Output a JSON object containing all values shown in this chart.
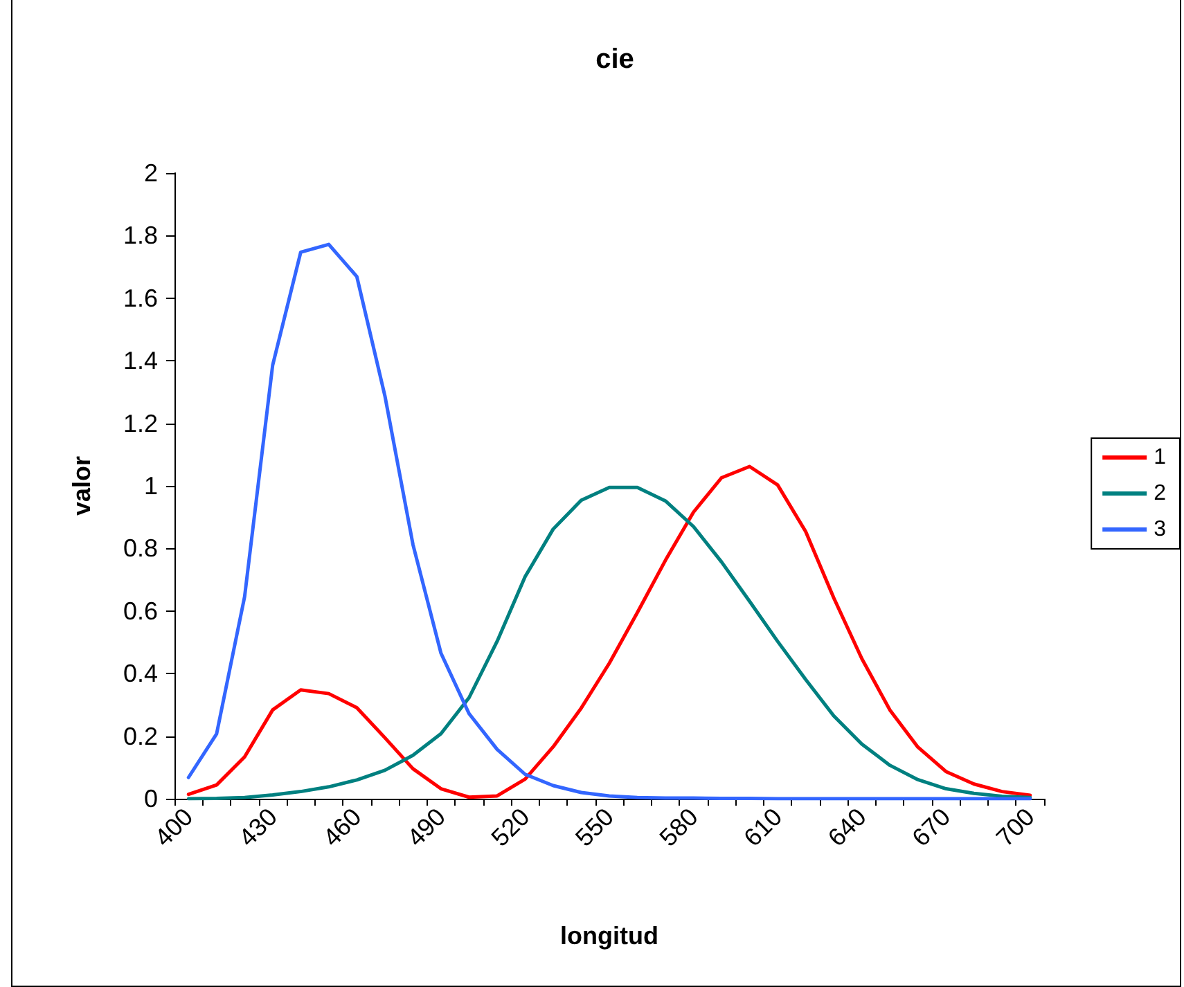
{
  "chart_data": {
    "type": "line",
    "title": "cie",
    "xlabel": "longitud",
    "ylabel": "valor",
    "categories": [
      "400",
      null,
      null,
      "430",
      null,
      null,
      "460",
      null,
      null,
      "490",
      null,
      null,
      "520",
      null,
      null,
      "550",
      null,
      null,
      "580",
      null,
      null,
      "610",
      null,
      null,
      "640",
      null,
      null,
      "670",
      null,
      null,
      "700"
    ],
    "series": [
      {
        "name": "1",
        "color": "#ff0000",
        "values": [
          0.014,
          0.044,
          0.134,
          0.284,
          0.348,
          0.336,
          0.291,
          0.195,
          0.096,
          0.032,
          0.005,
          0.009,
          0.063,
          0.166,
          0.29,
          0.433,
          0.595,
          0.762,
          0.916,
          1.026,
          1.062,
          1.003,
          0.854,
          0.642,
          0.448,
          0.284,
          0.165,
          0.087,
          0.047,
          0.023,
          0.011
        ]
      },
      {
        "name": "2",
        "color": "#008080",
        "values": [
          0,
          0.001,
          0.004,
          0.012,
          0.023,
          0.038,
          0.06,
          0.091,
          0.139,
          0.208,
          0.323,
          0.503,
          0.71,
          0.862,
          0.954,
          0.995,
          0.995,
          0.952,
          0.87,
          0.757,
          0.631,
          0.503,
          0.381,
          0.265,
          0.175,
          0.107,
          0.061,
          0.032,
          0.017,
          0.008,
          0.004
        ]
      },
      {
        "name": "3",
        "color": "#3366ff",
        "values": [
          0.068,
          0.207,
          0.646,
          1.386,
          1.747,
          1.772,
          1.669,
          1.288,
          0.813,
          0.465,
          0.272,
          0.158,
          0.078,
          0.042,
          0.02,
          0.009,
          0.004,
          0.002,
          0.002,
          0.001,
          0.001,
          0,
          0,
          0,
          0,
          0,
          0,
          0,
          0,
          0,
          0
        ]
      }
    ],
    "ylim": [
      0,
      2
    ],
    "yticks": [
      0,
      0.2,
      0.4,
      0.6,
      0.8,
      1,
      1.2,
      1.4,
      1.6,
      1.8,
      2
    ],
    "grid": false,
    "legend": "right",
    "marker": "none",
    "line_style": "solid"
  }
}
